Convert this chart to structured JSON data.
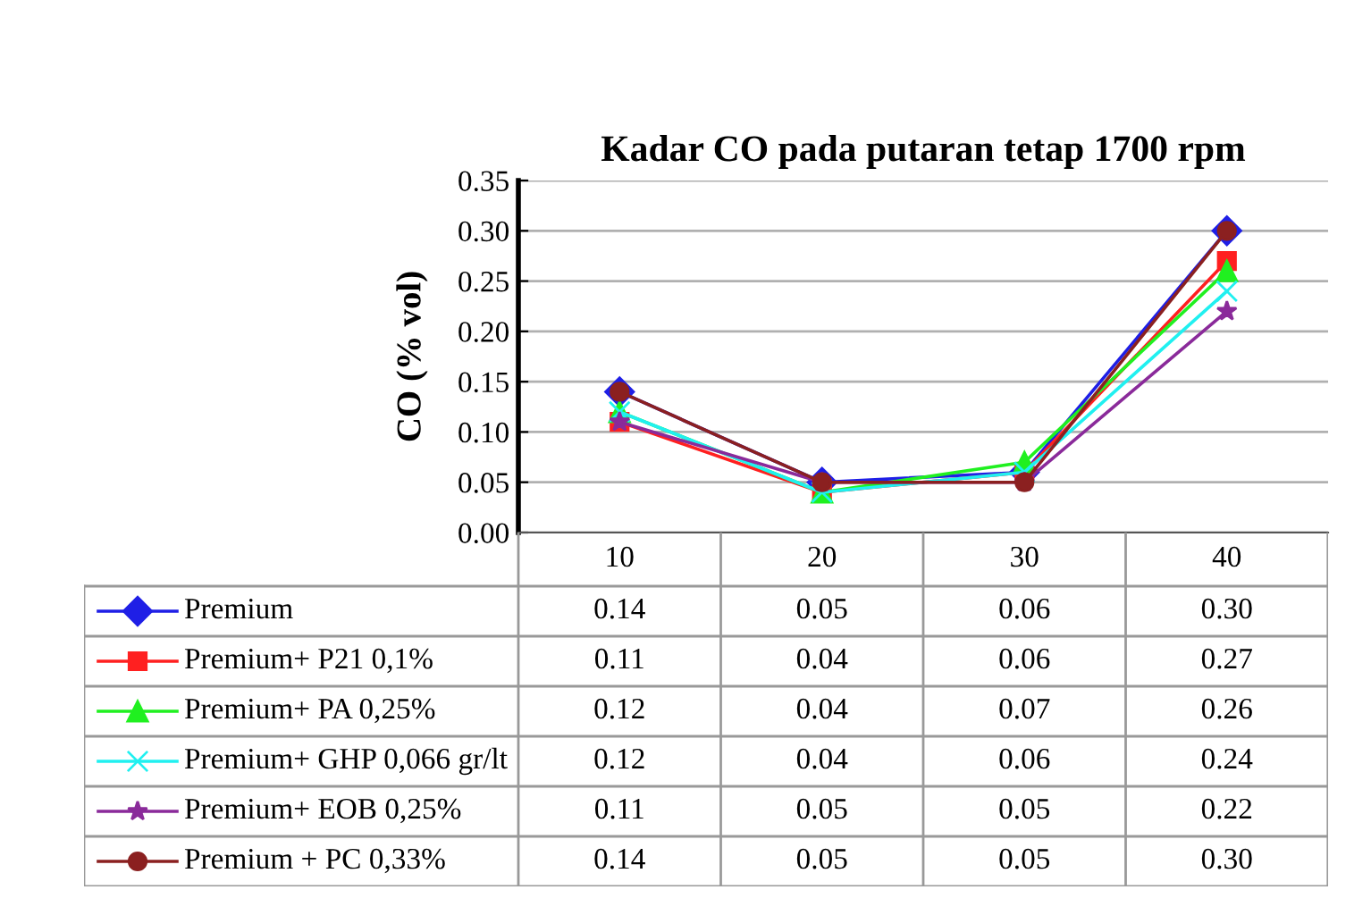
{
  "chart_data": {
    "type": "line",
    "title": "Kadar CO pada putaran tetap 1700 rpm",
    "ylabel": "CO (% vol)",
    "categories": [
      "10",
      "20",
      "30",
      "40"
    ],
    "ylim": [
      0,
      0.35
    ],
    "yticks": [
      {
        "value": 0,
        "label": "0.00"
      },
      {
        "value": 0.05,
        "label": "0.05"
      },
      {
        "value": 0.1,
        "label": "0.10"
      },
      {
        "value": 0.15,
        "label": "0.15"
      },
      {
        "value": 0.2,
        "label": "0.20"
      },
      {
        "value": 0.25,
        "label": "0.25"
      },
      {
        "value": 0.3,
        "label": "0.30"
      },
      {
        "value": 0.35,
        "label": "0.35"
      }
    ],
    "grid": "y",
    "legend": "bottom",
    "series": [
      {
        "name": "Premium",
        "color": "#1f1fe6",
        "marker": "diamond",
        "values": [
          0.14,
          0.05,
          0.06,
          0.3
        ],
        "value_labels": [
          "0.14",
          "0.05",
          "0.06",
          "0.30"
        ]
      },
      {
        "name": "Premium+ P21 0,1%",
        "color": "#ff2020",
        "marker": "square",
        "values": [
          0.11,
          0.04,
          0.06,
          0.27
        ],
        "value_labels": [
          "0.11",
          "0.04",
          "0.06",
          "0.27"
        ]
      },
      {
        "name": "Premium+ PA 0,25%",
        "color": "#20f020",
        "marker": "triangle",
        "values": [
          0.12,
          0.04,
          0.07,
          0.26
        ],
        "value_labels": [
          "0.12",
          "0.04",
          "0.07",
          "0.26"
        ]
      },
      {
        "name": "Premium+ GHP 0,066 gr/lt",
        "color": "#20f0f0",
        "marker": "cross",
        "values": [
          0.12,
          0.04,
          0.06,
          0.24
        ],
        "value_labels": [
          "0.12",
          "0.04",
          "0.06",
          "0.24"
        ]
      },
      {
        "name": "Premium+ EOB 0,25%",
        "color": "#8a2a9a",
        "marker": "star",
        "values": [
          0.11,
          0.05,
          0.05,
          0.22
        ],
        "value_labels": [
          "0.11",
          "0.05",
          "0.05",
          "0.22"
        ]
      },
      {
        "name": "Premium + PC 0,33%",
        "color": "#8b2020",
        "marker": "circle",
        "values": [
          0.14,
          0.05,
          0.05,
          0.3
        ],
        "value_labels": [
          "0.14",
          "0.05",
          "0.05",
          "0.30"
        ]
      }
    ]
  }
}
